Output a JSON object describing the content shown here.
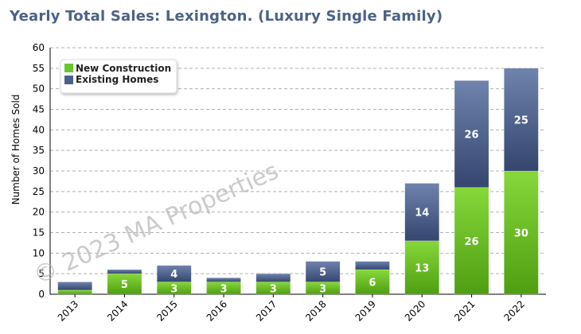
{
  "chart_data": {
    "type": "bar",
    "stacked": true,
    "title": "Yearly Total Sales: Lexington. (Luxury Single Family)",
    "xlabel": "",
    "ylabel": "Number of Homes Sold",
    "ylim": [
      0,
      60
    ],
    "yticks": [
      0,
      5,
      10,
      15,
      20,
      25,
      30,
      35,
      40,
      45,
      50,
      55,
      60
    ],
    "grid": true,
    "legend_position": "top-left",
    "categories": [
      "2013",
      "2014",
      "2015",
      "2016",
      "2017",
      "2018",
      "2019",
      "2020",
      "2021",
      "2022"
    ],
    "series": [
      {
        "name": "New Construction",
        "color": "#6ac72a",
        "values": [
          1,
          5,
          3,
          3,
          3,
          3,
          6,
          13,
          26,
          30
        ],
        "labels": [
          "",
          "5",
          "3",
          "3",
          "3",
          "3",
          "6",
          "13",
          "26",
          "30"
        ]
      },
      {
        "name": "Existing Homes",
        "color": "#4a5f8c",
        "values": [
          2,
          1,
          4,
          1,
          2,
          5,
          2,
          14,
          26,
          25
        ],
        "labels": [
          "",
          "",
          "4",
          "",
          "",
          "5",
          "",
          "14",
          "26",
          "25"
        ]
      }
    ]
  },
  "watermark": "© 2023 MA Properties"
}
